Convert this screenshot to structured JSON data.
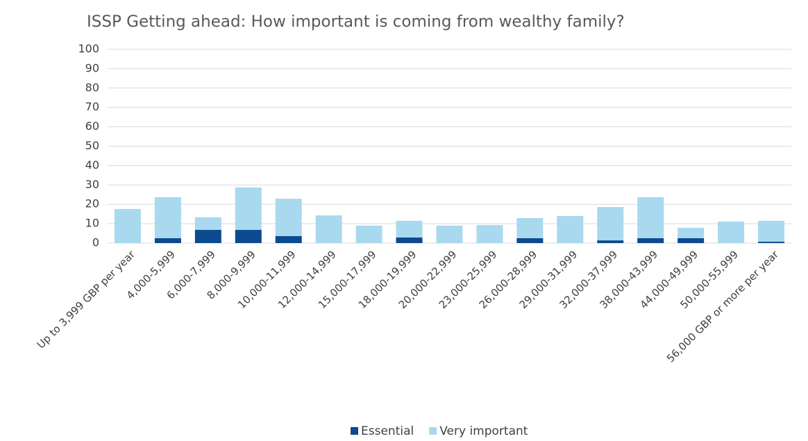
{
  "chart_data": {
    "type": "stacked-bar",
    "title": "ISSP Getting ahead: How important is coming from wealthy family?",
    "categories": [
      "Up to 3,999 GBP per year",
      "4,000-5,999",
      "6,000-7,999",
      "8,000-9,999",
      "10,000-11,999",
      "12,000-14,999",
      "15,000-17,999",
      "18,000-19,999",
      "20,000-22,999",
      "23,000-25,999",
      "26,000-28,999",
      "29,000-31,999",
      "32,000-37,999",
      "38,000-43,999",
      "44,000-49,999",
      "50,000-55,999",
      "56,000 GBP or more per year"
    ],
    "series": [
      {
        "name": "Essential",
        "color": "#0b4a8e",
        "values": [
          0,
          2.5,
          6.8,
          6.8,
          3.6,
          0,
          0,
          2.9,
          0,
          0,
          2.5,
          0,
          1.4,
          2.5,
          2.5,
          0,
          0.7
        ]
      },
      {
        "name": "Very important",
        "color": "#a9d9ef",
        "values": [
          17.6,
          21.2,
          6.5,
          21.9,
          19.3,
          14.3,
          9.0,
          8.6,
          9.0,
          9.3,
          10.4,
          14.0,
          17.2,
          21.2,
          5.4,
          11.1,
          10.8
        ]
      }
    ],
    "ylim": [
      0,
      100
    ],
    "yticks": [
      0,
      10,
      20,
      30,
      40,
      50,
      60,
      70,
      80,
      90,
      100
    ],
    "grid": true,
    "legend": "bottom"
  }
}
